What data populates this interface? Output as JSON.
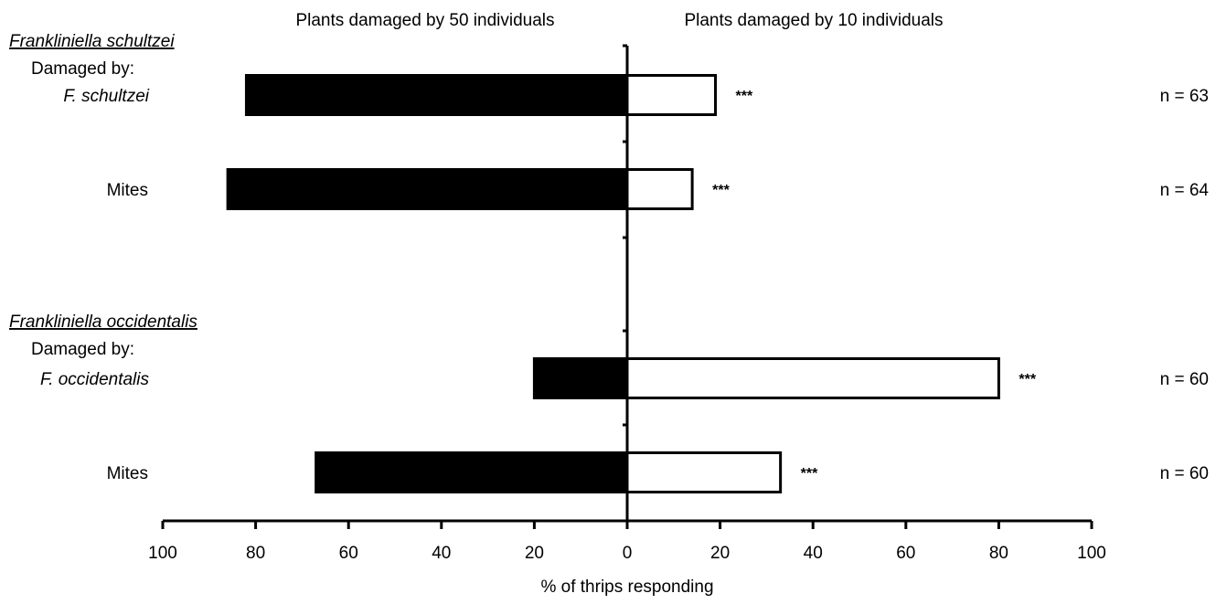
{
  "chart_data": {
    "type": "bar",
    "orientation": "horizontal",
    "diverging": true,
    "headers": {
      "left": "Plants damaged by 50 individuals",
      "right": "Plants damaged by 10 individuals"
    },
    "xlabel": "% of thrips responding",
    "xlim": [
      -100,
      100
    ],
    "ticks": [
      100,
      80,
      60,
      40,
      20,
      0,
      20,
      40,
      60,
      80,
      100
    ],
    "groups": [
      {
        "title": "Frankliniella schultzei",
        "subtitle": "Damaged by:"
      },
      {
        "title": "Frankliniella occidentalis",
        "subtitle": "Damaged by:"
      }
    ],
    "categories": [
      {
        "label": "F. schultzei",
        "italic": true,
        "group": 0,
        "left": 82,
        "right": 19,
        "sig": "***",
        "n": "n = 63"
      },
      {
        "label": "Mites",
        "italic": false,
        "group": 0,
        "left": 86,
        "right": 14,
        "sig": "***",
        "n": "n = 64"
      },
      {
        "label": "F. occidentalis",
        "italic": true,
        "group": 1,
        "left": 20,
        "right": 80,
        "sig": "***",
        "n": "n = 60"
      },
      {
        "label": "Mites",
        "italic": false,
        "group": 1,
        "left": 67,
        "right": 33,
        "sig": "***",
        "n": "n = 60"
      }
    ],
    "series": [
      {
        "name": "Plants damaged by 50 individuals",
        "color": "#000000"
      },
      {
        "name": "Plants damaged by 10 individuals",
        "color": "#ffffff"
      }
    ]
  }
}
